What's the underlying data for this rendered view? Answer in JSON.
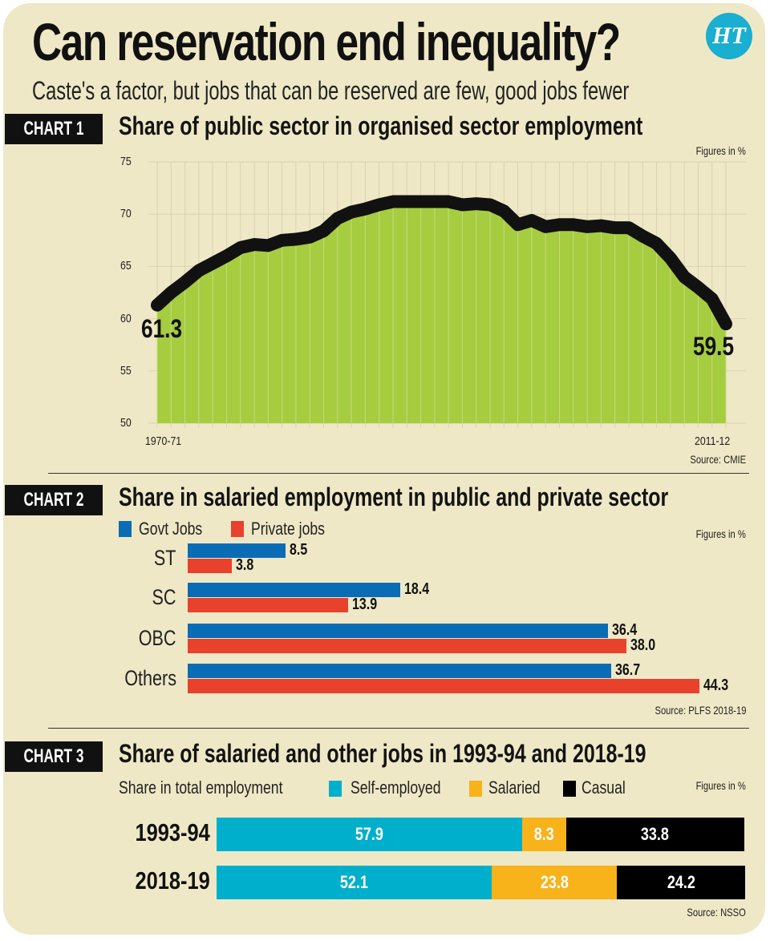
{
  "header": {
    "title": "Can reservation end inequality?",
    "subtitle": "Caste's a factor, but jobs that can be reserved are few, good jobs fewer",
    "logo_text": "HT"
  },
  "colors": {
    "background": "#efe8c6",
    "area_fill": "#a6cc40",
    "line": "#111111",
    "govt": "#0a6cb4",
    "private": "#e8412c",
    "self_employed": "#00afcb",
    "salaried": "#f8b21a",
    "casual": "#000000",
    "logo": "#1aaed0"
  },
  "chart_data": [
    {
      "type": "area",
      "badge": "CHART 1",
      "title": "Share of public sector in organised sector employment",
      "units_note": "Figures in %",
      "source": "Source: CMIE",
      "x_tick_labels": [
        "1970-71",
        "2011-12"
      ],
      "x_range": [
        "1970-71",
        "2011-12"
      ],
      "ylim": [
        50,
        75
      ],
      "y_ticks": [
        50,
        55,
        60,
        65,
        70,
        75
      ],
      "grid": true,
      "values": [
        61.3,
        62.5,
        63.5,
        64.6,
        65.3,
        66.0,
        66.8,
        67.1,
        67.0,
        67.5,
        67.6,
        67.8,
        68.4,
        69.6,
        70.2,
        70.5,
        70.9,
        71.2,
        71.2,
        71.2,
        71.2,
        71.2,
        70.9,
        71.0,
        70.9,
        70.3,
        69.0,
        69.4,
        68.8,
        69.0,
        69.0,
        68.8,
        68.9,
        68.7,
        68.7,
        67.9,
        67.2,
        65.8,
        64.0,
        63.0,
        61.9,
        59.5
      ],
      "annotations": {
        "start": "61.3",
        "end": "59.5"
      }
    },
    {
      "type": "bar",
      "orientation": "horizontal",
      "badge": "CHART 2",
      "title": "Share in salaried employment in public and private sector",
      "units_note": "Figures in %",
      "source": "Source: PLFS 2018-19",
      "legend_placement": "top-left",
      "categories": [
        "ST",
        "SC",
        "OBC",
        "Others"
      ],
      "series": [
        {
          "name": "Govt Jobs",
          "values": [
            8.5,
            18.4,
            36.4,
            36.7
          ],
          "labels": [
            "8.5",
            "18.4",
            "36.4",
            "36.7"
          ]
        },
        {
          "name": "Private jobs",
          "values": [
            3.8,
            13.9,
            38.0,
            44.3
          ],
          "labels": [
            "3.8",
            "13.9",
            "38.0",
            "44.3"
          ]
        }
      ]
    },
    {
      "type": "bar",
      "orientation": "horizontal",
      "stacked": true,
      "badge": "CHART 3",
      "title": "Share of salaried and other jobs in 1993-94 and 2018-19",
      "legend_title": "Share in total employment",
      "units_note": "Figures in %",
      "source": "Source: NSSO",
      "legend_placement": "top",
      "categories": [
        "1993-94",
        "2018-19"
      ],
      "series": [
        {
          "name": "Self-employed",
          "values": [
            57.9,
            52.1
          ],
          "labels": [
            "57.9",
            "52.1"
          ]
        },
        {
          "name": "Salaried",
          "values": [
            8.3,
            23.8
          ],
          "labels": [
            "8.3",
            "23.8"
          ]
        },
        {
          "name": "Casual",
          "values": [
            33.8,
            24.2
          ],
          "labels": [
            "33.8",
            "24.2"
          ]
        }
      ]
    }
  ]
}
